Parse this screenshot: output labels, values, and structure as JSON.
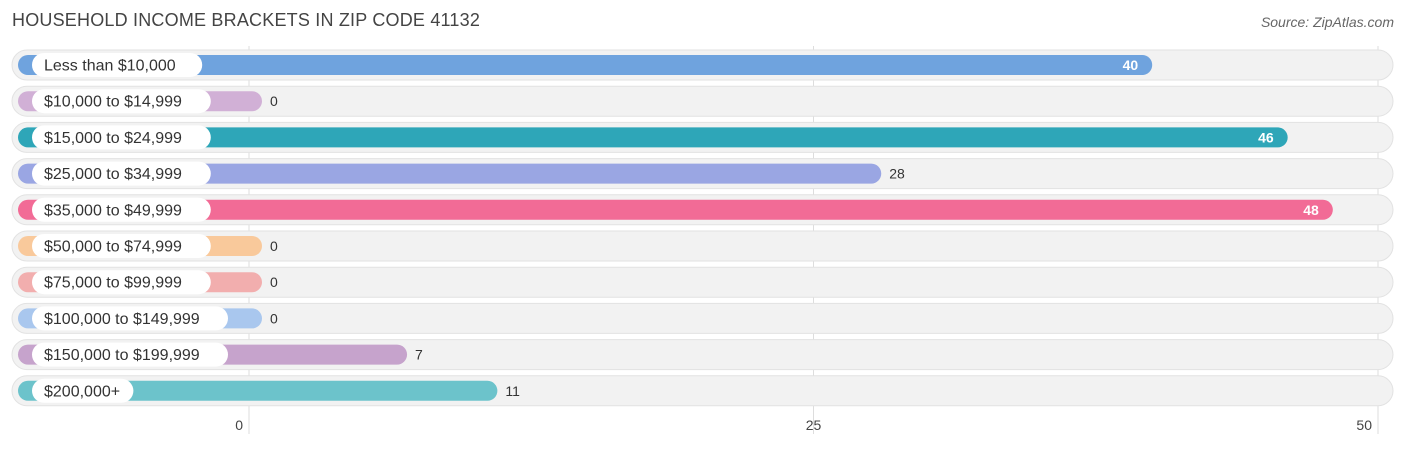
{
  "header": {
    "title": "HOUSEHOLD INCOME BRACKETS IN ZIP CODE 41132",
    "source": "Source: ZipAtlas.com"
  },
  "chart_data": {
    "type": "bar",
    "orientation": "horizontal",
    "title": "HOUSEHOLD INCOME BRACKETS IN ZIP CODE 41132",
    "xlabel": "",
    "ylabel": "",
    "xlim": [
      0,
      50
    ],
    "ticks": [
      0,
      25,
      50
    ],
    "categories": [
      "Less than $10,000",
      "$10,000 to $14,999",
      "$15,000 to $24,999",
      "$25,000 to $34,999",
      "$35,000 to $49,999",
      "$50,000 to $74,999",
      "$75,000 to $99,999",
      "$100,000 to $149,999",
      "$150,000 to $199,999",
      "$200,000+"
    ],
    "values": [
      40,
      0,
      46,
      28,
      48,
      0,
      0,
      0,
      7,
      11
    ],
    "colors": [
      "#6fa3de",
      "#d1b0d6",
      "#2ea6b8",
      "#9aa6e3",
      "#f26b96",
      "#f9c99b",
      "#f2aeae",
      "#a9c7ee",
      "#c6a3cc",
      "#6cc3cb"
    ]
  }
}
